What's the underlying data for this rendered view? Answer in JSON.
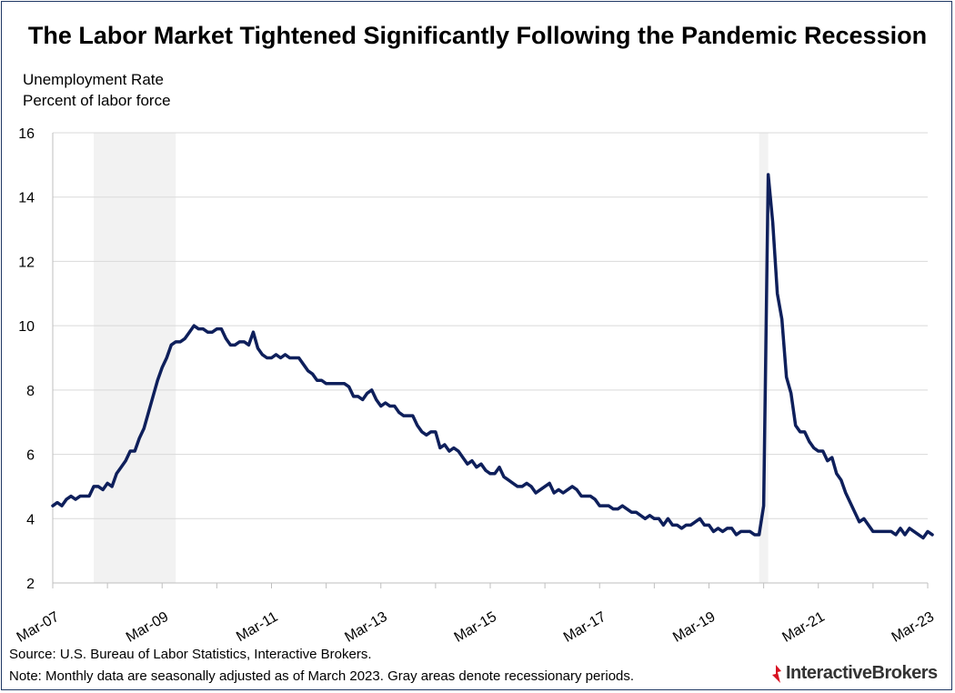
{
  "header": {
    "title": "The Labor Market Tightened Significantly Following the Pandemic Recession",
    "ylabel_line1": "Unemployment  Rate",
    "ylabel_line2": "Percent of labor force"
  },
  "footer": {
    "source": "Source: U.S. Bureau of Labor Statistics, Interactive Brokers.",
    "note": "Note: Monthly data are seasonally adjusted as of March 2023. Gray areas denote recessionary periods.",
    "logo_text": "InteractiveBrokers"
  },
  "colors": {
    "line": "#0e1f5b",
    "recession": "#f2f2f2",
    "grid": "#d9d9d9",
    "logo_red": "#d81222"
  },
  "chart_data": {
    "type": "line",
    "title": "The Labor Market Tightened Significantly Following the Pandemic Recession",
    "ylabel": "Unemployment  Rate / Percent of labor force",
    "xlabel": "",
    "ylim": [
      2,
      16
    ],
    "yticks": [
      2,
      4,
      6,
      8,
      10,
      12,
      14,
      16
    ],
    "x_start": "Mar-07",
    "x_end": "Mar-23",
    "xtick_labels": [
      "Mar-07",
      "Mar-09",
      "Mar-11",
      "Mar-13",
      "Mar-15",
      "Mar-17",
      "Mar-19",
      "Mar-21",
      "Mar-23"
    ],
    "grid": true,
    "recessions": [
      {
        "start": "Dec-07",
        "end": "Jun-09"
      },
      {
        "start": "Feb-20",
        "end": "Apr-20"
      }
    ],
    "series": [
      {
        "values": [
          4.4,
          4.5,
          4.4,
          4.6,
          4.7,
          4.6,
          4.7,
          4.7,
          4.7,
          5.0,
          5.0,
          4.9,
          5.1,
          5.0,
          5.4,
          5.6,
          5.8,
          6.1,
          6.1,
          6.5,
          6.8,
          7.3,
          7.8,
          8.3,
          8.7,
          9.0,
          9.4,
          9.5,
          9.5,
          9.6,
          9.8,
          10.0,
          9.9,
          9.9,
          9.8,
          9.8,
          9.9,
          9.9,
          9.6,
          9.4,
          9.4,
          9.5,
          9.5,
          9.4,
          9.8,
          9.3,
          9.1,
          9.0,
          9.0,
          9.1,
          9.0,
          9.1,
          9.0,
          9.0,
          9.0,
          8.8,
          8.6,
          8.5,
          8.3,
          8.3,
          8.2,
          8.2,
          8.2,
          8.2,
          8.2,
          8.1,
          7.8,
          7.8,
          7.7,
          7.9,
          8.0,
          7.7,
          7.5,
          7.6,
          7.5,
          7.5,
          7.3,
          7.2,
          7.2,
          7.2,
          6.9,
          6.7,
          6.6,
          6.7,
          6.7,
          6.2,
          6.3,
          6.1,
          6.2,
          6.1,
          5.9,
          5.7,
          5.8,
          5.6,
          5.7,
          5.5,
          5.4,
          5.4,
          5.6,
          5.3,
          5.2,
          5.1,
          5.0,
          5.0,
          5.1,
          5.0,
          4.8,
          4.9,
          5.0,
          5.1,
          4.8,
          4.9,
          4.8,
          4.9,
          5.0,
          4.9,
          4.7,
          4.7,
          4.7,
          4.6,
          4.4,
          4.4,
          4.4,
          4.3,
          4.3,
          4.4,
          4.3,
          4.2,
          4.2,
          4.1,
          4.0,
          4.1,
          4.0,
          4.0,
          3.8,
          4.0,
          3.8,
          3.8,
          3.7,
          3.8,
          3.8,
          3.9,
          4.0,
          3.8,
          3.8,
          3.6,
          3.7,
          3.6,
          3.7,
          3.7,
          3.5,
          3.6,
          3.6,
          3.6,
          3.5,
          3.5,
          4.4,
          14.7,
          13.2,
          11.0,
          10.2,
          8.4,
          7.9,
          6.9,
          6.7,
          6.7,
          6.4,
          6.2,
          6.1,
          6.1,
          5.8,
          5.9,
          5.4,
          5.2,
          4.8,
          4.5,
          4.2,
          3.9,
          4.0,
          3.8,
          3.6,
          3.6,
          3.6,
          3.6,
          3.6,
          3.5,
          3.7,
          3.5,
          3.7,
          3.6,
          3.5,
          3.4,
          3.6,
          3.5
        ]
      }
    ]
  }
}
